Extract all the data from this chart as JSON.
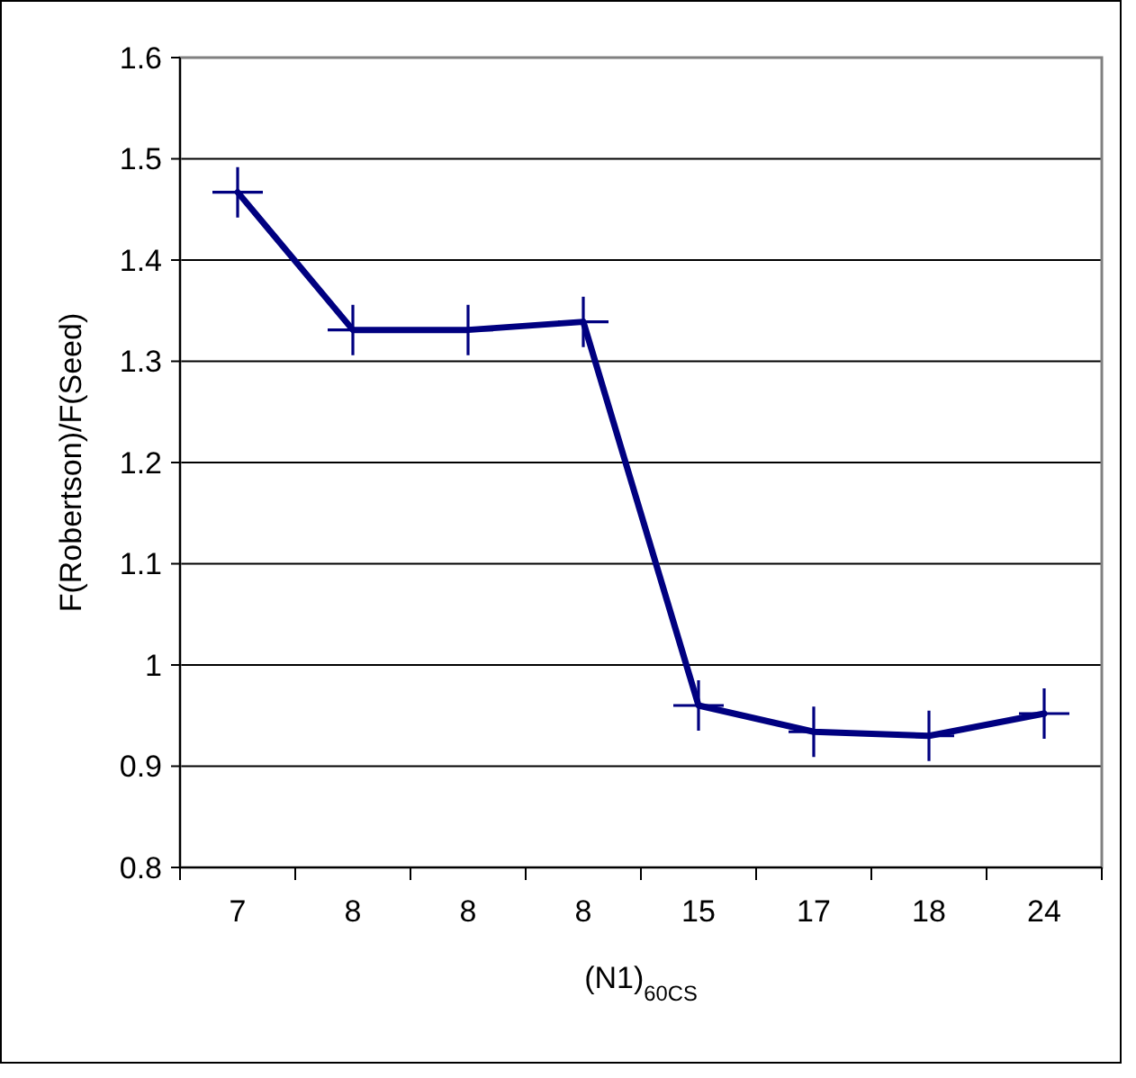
{
  "chart_data": {
    "type": "line",
    "xlabel": "(N1)$_{60CS}$",
    "ylabel": "F(Robertson)/F(Seed)",
    "categories": [
      "7",
      "8",
      "8",
      "8",
      "15",
      "17",
      "18",
      "24"
    ],
    "series": [
      {
        "color": "#000080",
        "values": [
          1.467,
          1.331,
          1.331,
          1.339,
          0.96,
          0.934,
          0.93,
          0.952
        ]
      }
    ],
    "ylim": [
      0.8,
      1.6
    ],
    "yticks": [
      0.8,
      0.9,
      1,
      1.1,
      1.2,
      1.3,
      1.4,
      1.5,
      1.6
    ],
    "grid": "y",
    "marker": "cross",
    "line_style": "solid"
  }
}
